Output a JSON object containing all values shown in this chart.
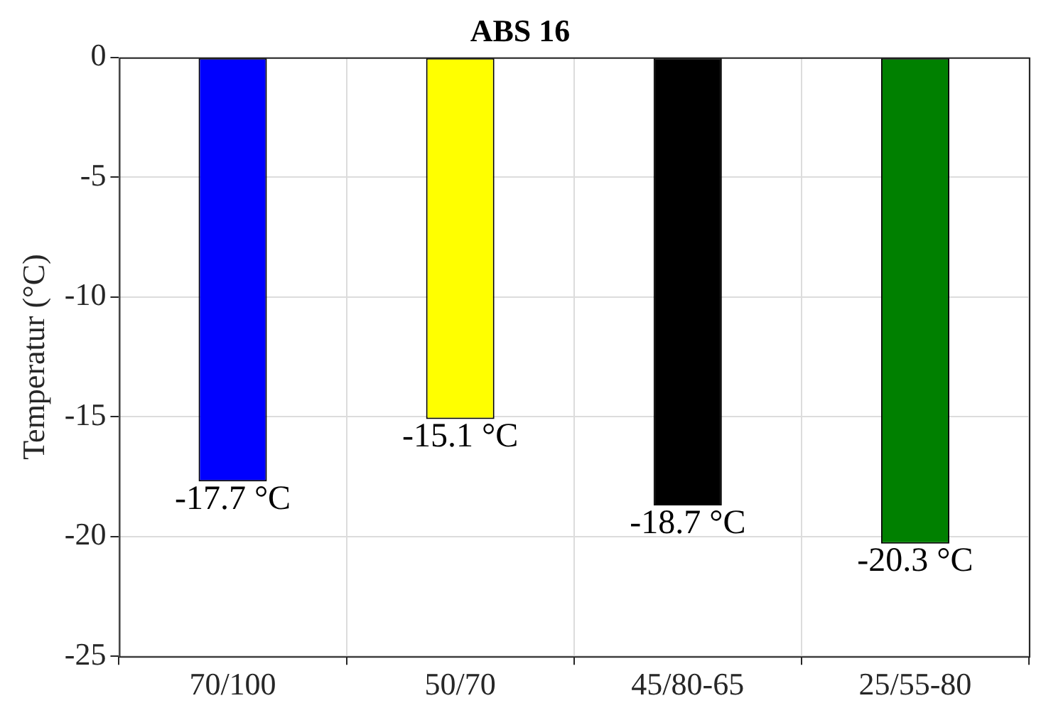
{
  "chart_data": {
    "type": "bar",
    "title": "ABS 16",
    "ylabel": "Temperatur (°C)",
    "categories": [
      "70/100",
      "50/70",
      "45/80-65",
      "25/55-80"
    ],
    "values": [
      -17.7,
      -15.1,
      -18.7,
      -20.3
    ],
    "colors": [
      "#0000ff",
      "#ffff00",
      "#000000",
      "#008000"
    ],
    "value_labels": [
      "-17.7 °C",
      "-15.1 °C",
      "-18.7 °C",
      "-20.3 °C"
    ],
    "ylim": [
      -25,
      0
    ],
    "yticks": [
      -25,
      -20,
      -15,
      -10,
      -5,
      0
    ],
    "grid": true
  }
}
